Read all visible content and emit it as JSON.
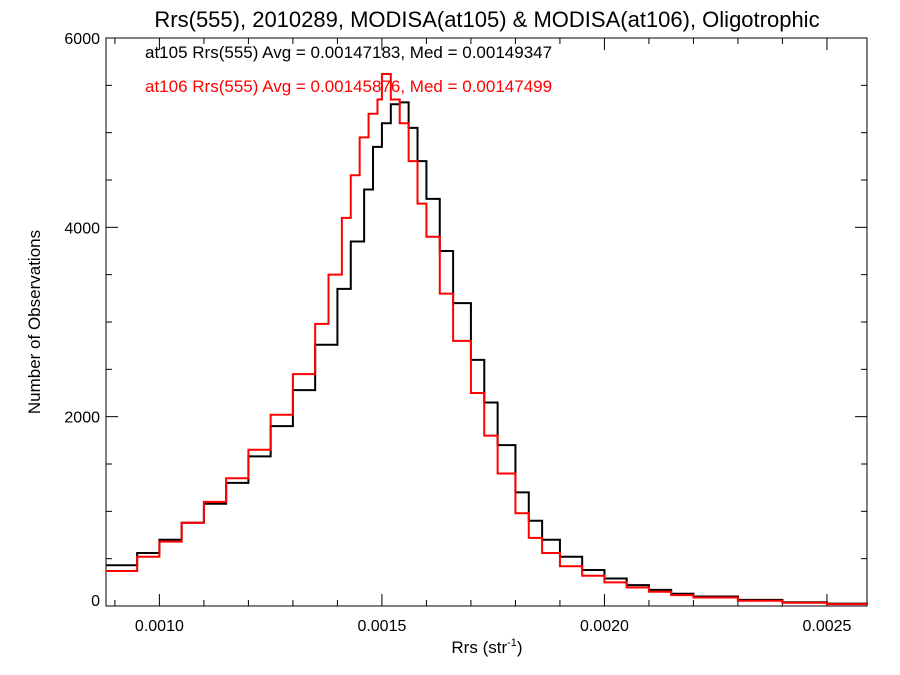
{
  "chart_data": {
    "type": "line",
    "title": "Rrs(555), 2010289, MODISA(at105) & MODISA(at106), Oligotrophic",
    "xlabel": "Rrs (str",
    "xlabel_sup": "-1",
    "xlabel_close": ")",
    "ylabel": "Number of Observations",
    "xlim": [
      0.00088,
      0.00259
    ],
    "ylim": [
      0,
      6000
    ],
    "x_ticks": [
      0.001,
      0.0015,
      0.002,
      0.0025
    ],
    "x_tick_labels": [
      "0.0010",
      "0.0015",
      "0.0020",
      "0.0025"
    ],
    "y_ticks": [
      0,
      2000,
      4000,
      6000
    ],
    "y_tick_labels": [
      "0",
      "2000",
      "4000",
      "6000"
    ],
    "step_style": "histogram",
    "grid": false,
    "legend_placement": "top-left",
    "legend": [
      {
        "series": 0,
        "text": "at105 Rrs(555) Avg = 0.00147183, Med = 0.00149347"
      },
      {
        "series": 1,
        "text": "at106 Rrs(555) Avg = 0.00145876, Med = 0.00147499"
      }
    ],
    "series": [
      {
        "color": "#000000",
        "points": [
          [
            0.00088,
            430
          ],
          [
            0.00095,
            560
          ],
          [
            0.001,
            700
          ],
          [
            0.00105,
            880
          ],
          [
            0.0011,
            1080
          ],
          [
            0.00115,
            1300
          ],
          [
            0.0012,
            1580
          ],
          [
            0.00125,
            1900
          ],
          [
            0.0013,
            2280
          ],
          [
            0.00135,
            2760
          ],
          [
            0.0014,
            3350
          ],
          [
            0.00143,
            3850
          ],
          [
            0.00146,
            4400
          ],
          [
            0.00148,
            4850
          ],
          [
            0.0015,
            5100
          ],
          [
            0.00152,
            5300
          ],
          [
            0.00154,
            5320
          ],
          [
            0.00156,
            5050
          ],
          [
            0.00158,
            4700
          ],
          [
            0.0016,
            4300
          ],
          [
            0.00163,
            3750
          ],
          [
            0.00166,
            3200
          ],
          [
            0.0017,
            2600
          ],
          [
            0.00173,
            2150
          ],
          [
            0.00176,
            1700
          ],
          [
            0.0018,
            1200
          ],
          [
            0.00183,
            900
          ],
          [
            0.00186,
            700
          ],
          [
            0.0019,
            520
          ],
          [
            0.00195,
            380
          ],
          [
            0.002,
            290
          ],
          [
            0.00205,
            220
          ],
          [
            0.0021,
            170
          ],
          [
            0.00215,
            130
          ],
          [
            0.0022,
            100
          ],
          [
            0.0023,
            65
          ],
          [
            0.0024,
            40
          ],
          [
            0.0025,
            25
          ],
          [
            0.00259,
            15
          ]
        ]
      },
      {
        "color": "#ff0000",
        "points": [
          [
            0.00088,
            370
          ],
          [
            0.00095,
            520
          ],
          [
            0.001,
            680
          ],
          [
            0.00105,
            880
          ],
          [
            0.0011,
            1100
          ],
          [
            0.00115,
            1350
          ],
          [
            0.0012,
            1650
          ],
          [
            0.00125,
            2020
          ],
          [
            0.0013,
            2450
          ],
          [
            0.00135,
            2980
          ],
          [
            0.00138,
            3500
          ],
          [
            0.00141,
            4100
          ],
          [
            0.00143,
            4550
          ],
          [
            0.00145,
            4950
          ],
          [
            0.00147,
            5200
          ],
          [
            0.00149,
            5350
          ],
          [
            0.0015,
            5620
          ],
          [
            0.00152,
            5350
          ],
          [
            0.00154,
            5100
          ],
          [
            0.00156,
            4700
          ],
          [
            0.00158,
            4250
          ],
          [
            0.0016,
            3900
          ],
          [
            0.00163,
            3300
          ],
          [
            0.00166,
            2800
          ],
          [
            0.0017,
            2250
          ],
          [
            0.00173,
            1800
          ],
          [
            0.00176,
            1400
          ],
          [
            0.0018,
            980
          ],
          [
            0.00183,
            720
          ],
          [
            0.00186,
            560
          ],
          [
            0.0019,
            420
          ],
          [
            0.00195,
            320
          ],
          [
            0.002,
            250
          ],
          [
            0.00205,
            195
          ],
          [
            0.0021,
            150
          ],
          [
            0.00215,
            115
          ],
          [
            0.0022,
            90
          ],
          [
            0.0023,
            55
          ],
          [
            0.0024,
            35
          ],
          [
            0.0025,
            20
          ],
          [
            0.00259,
            12
          ]
        ]
      }
    ]
  }
}
